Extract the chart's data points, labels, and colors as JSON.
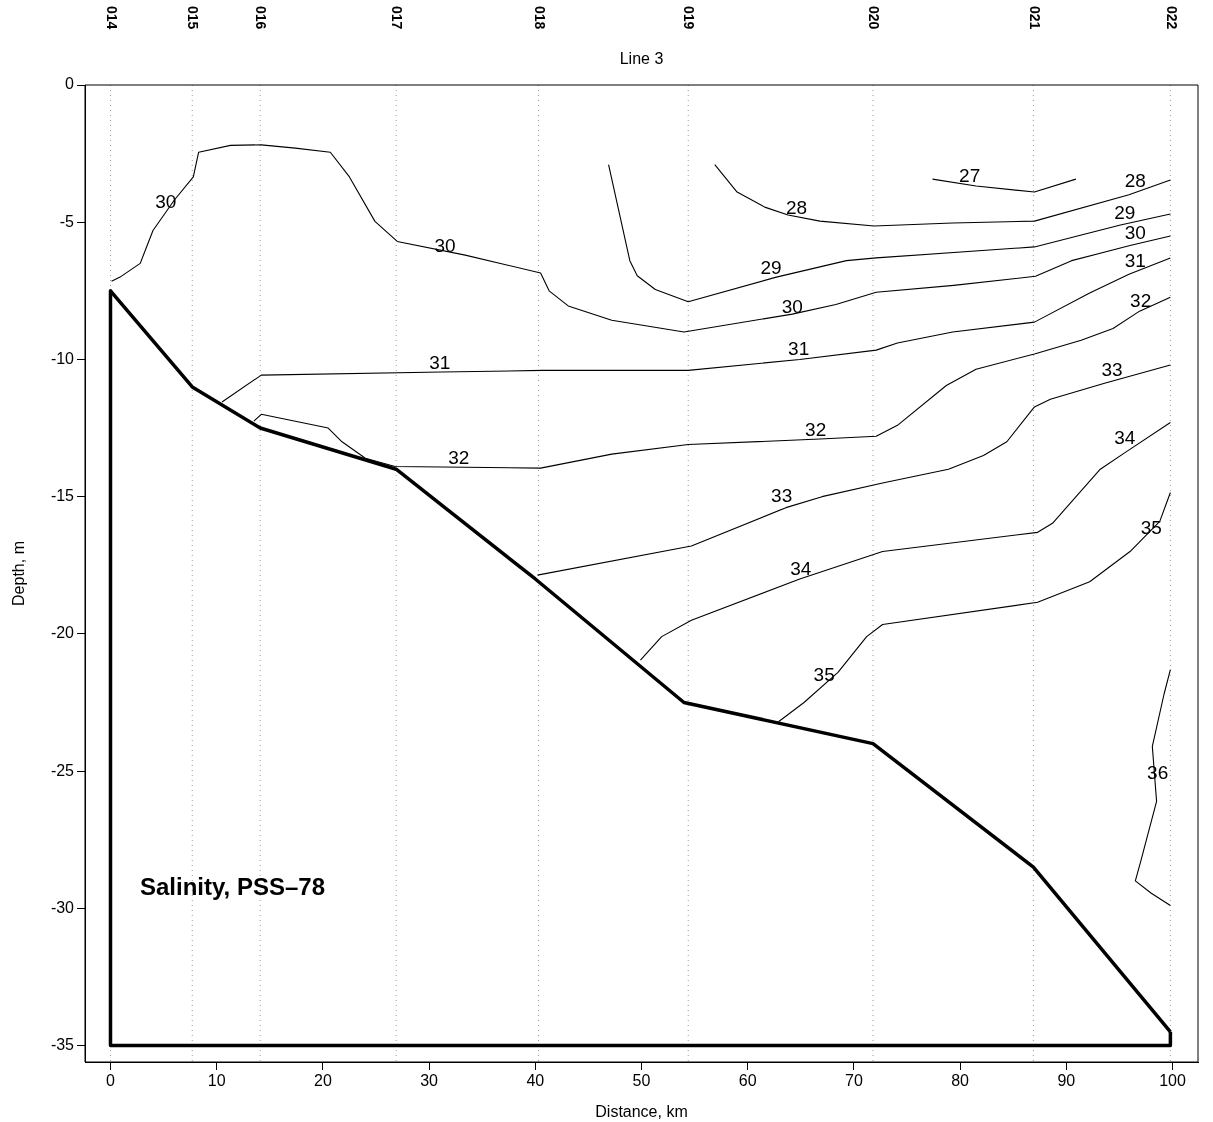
{
  "chart_data": {
    "type": "line",
    "title": "Salinity, PSS–78",
    "subtitle": "Line 3",
    "xlabel": "Distance, km",
    "ylabel": "Depth, m",
    "xlim": [
      -2.4,
      102.4
    ],
    "ylim": [
      -35.6,
      0
    ],
    "xticks": [
      0,
      10,
      20,
      30,
      40,
      50,
      60,
      70,
      80,
      90,
      100
    ],
    "yticks": [
      0,
      -5,
      -10,
      -15,
      -20,
      -25,
      -30,
      -35
    ],
    "marker": "none",
    "grid": false,
    "legend": false,
    "ref_lines": [
      {
        "axis": "x",
        "value": 0,
        "color": "#999999",
        "line_style": "dotted"
      },
      {
        "axis": "x",
        "value": 7.7,
        "color": "#999999",
        "line_style": "dotted"
      },
      {
        "axis": "x",
        "value": 14.1,
        "color": "#999999",
        "line_style": "dotted"
      },
      {
        "axis": "x",
        "value": 26.9,
        "color": "#999999",
        "line_style": "dotted"
      },
      {
        "axis": "x",
        "value": 40.3,
        "color": "#999999",
        "line_style": "dotted"
      },
      {
        "axis": "x",
        "value": 54.4,
        "color": "#999999",
        "line_style": "dotted"
      },
      {
        "axis": "x",
        "value": 71.8,
        "color": "#999999",
        "line_style": "dotted"
      },
      {
        "axis": "x",
        "value": 86.9,
        "color": "#999999",
        "line_style": "dotted"
      },
      {
        "axis": "x",
        "value": 99.8,
        "color": "#999999",
        "line_style": "dotted"
      }
    ],
    "series": [
      {
        "color": "#000000",
        "x": [
          0.1,
          0.9,
          2.8,
          4.0,
          6.0,
          7.8,
          8.3,
          11.3,
          14.2,
          17.4,
          20.7,
          22.5,
          24.9,
          27.0,
          33.4,
          40.5,
          41.3,
          43.1,
          47.2,
          54.0,
          64.2,
          68.3,
          72.1,
          79.4,
          87.1,
          90.5,
          96.0,
          99.8
        ],
        "values": [
          -7.15,
          -7.0,
          -6.5,
          -5.3,
          -4.2,
          -3.35,
          -2.45,
          -2.2,
          -2.18,
          -2.3,
          -2.45,
          -3.35,
          -4.97,
          -5.7,
          -6.2,
          -6.85,
          -7.5,
          -8.05,
          -8.57,
          -9.0,
          -8.35,
          -8.0,
          -7.55,
          -7.3,
          -6.97,
          -6.4,
          -5.85,
          -5.5
        ]
      },
      {
        "color": "#000000",
        "x": [
          46.9,
          48.9,
          49.6,
          51.3,
          54.4,
          62.7,
          69.3,
          72.1,
          87.0,
          95.1,
          99.8
        ],
        "values": [
          -2.9,
          -6.4,
          -6.95,
          -7.45,
          -7.9,
          -7.0,
          -6.4,
          -6.3,
          -5.9,
          -5.1,
          -4.7
        ]
      },
      {
        "color": "#000000",
        "x": [
          56.9,
          59.0,
          61.6,
          63.8,
          66.8,
          71.9,
          79.3,
          87.0,
          95.9,
          99.8
        ],
        "values": [
          -2.9,
          -3.9,
          -4.45,
          -4.74,
          -4.96,
          -5.14,
          -5.03,
          -4.96,
          -4.0,
          -3.46
        ]
      },
      {
        "color": "#000000",
        "x": [
          77.4,
          81.5,
          87.0,
          90.9
        ],
        "values": [
          -3.43,
          -3.68,
          -3.9,
          -3.43
        ]
      },
      {
        "color": "#000000",
        "x": [
          10.5,
          14.2,
          31.2,
          40.7,
          54.4,
          64.9,
          72.1,
          74.1,
          79.3,
          87.0,
          92.2,
          95.9,
          99.8
        ],
        "values": [
          -11.55,
          -10.57,
          -10.46,
          -10.4,
          -10.4,
          -10.0,
          -9.66,
          -9.4,
          -9.0,
          -8.64,
          -7.58,
          -6.9,
          -6.3
        ]
      },
      {
        "color": "#000000",
        "x": [
          13.5,
          14.2,
          20.5,
          21.8,
          24.0,
          26.8,
          33.4,
          40.5,
          47.2,
          54.4,
          66.8,
          72.1,
          74.1,
          78.7,
          81.5,
          87.0,
          91.4,
          94.4,
          96.9,
          99.8
        ],
        "values": [
          -12.25,
          -12.0,
          -12.5,
          -13.0,
          -13.6,
          -13.9,
          -13.93,
          -13.96,
          -13.45,
          -13.1,
          -12.9,
          -12.8,
          -12.4,
          -10.95,
          -10.36,
          -9.8,
          -9.3,
          -8.87,
          -8.24,
          -7.73
        ]
      },
      {
        "color": "#000000",
        "x": [
          40.2,
          54.7,
          63.6,
          67.0,
          72.7,
          78.9,
          82.2,
          84.4,
          87.0,
          88.5,
          93.6,
          99.8
        ],
        "values": [
          -17.86,
          -16.8,
          -15.4,
          -15.0,
          -14.5,
          -14.0,
          -13.5,
          -13.0,
          -11.73,
          -11.45,
          -10.87,
          -10.2
        ]
      },
      {
        "color": "#000000",
        "x": [
          49.9,
          51.9,
          54.7,
          64.9,
          72.7,
          87.3,
          88.7,
          93.2,
          95.7,
          99.8
        ],
        "values": [
          -20.96,
          -20.1,
          -19.5,
          -18.0,
          -17.0,
          -16.3,
          -15.97,
          -14.0,
          -13.35,
          -12.3
        ]
      },
      {
        "color": "#000000",
        "x": [
          62.9,
          65.3,
          68.5,
          71.2,
          72.7,
          87.3,
          92.2,
          96.0,
          98.8,
          99.8
        ],
        "values": [
          -23.2,
          -22.5,
          -21.4,
          -20.1,
          -19.66,
          -18.85,
          -18.1,
          -17.0,
          -15.9,
          -14.85
        ]
      },
      {
        "color": "#000000",
        "x": [
          99.8,
          99.2,
          98.1,
          98.5,
          97.0,
          96.5,
          98.0,
          99.8
        ],
        "values": [
          -21.3,
          -22.2,
          -24.1,
          -26.1,
          -28.3,
          -29.0,
          -29.45,
          -29.9
        ]
      },
      {
        "color": "#000000",
        "x": [
          0,
          7.7,
          14.1,
          26.9,
          40.0,
          54.0,
          71.8,
          86.9,
          99.8
        ],
        "values": [
          -7.5,
          -11,
          -12.5,
          -14,
          -18,
          -22.5,
          -24,
          -28.5,
          -34.5
        ]
      },
      {
        "color": "#000000",
        "x": [
          0,
          0,
          99.8,
          99.8
        ],
        "values": [
          -7.5,
          -35,
          -35,
          -34.5
        ]
      }
    ],
    "annotations": [
      "014",
      "015",
      "016",
      "017",
      "018",
      "019",
      "020",
      "021",
      "022",
      {
        "text": "30",
        "x": 5.2,
        "y": -4.6
      },
      {
        "text": "30",
        "x": 31.5,
        "y": -6.2
      },
      {
        "text": "30",
        "x": 64.2,
        "y": -8.4
      },
      {
        "text": "30",
        "x": 96.5,
        "y": -5.7
      },
      {
        "text": "28",
        "x": 64.6,
        "y": -4.8
      },
      {
        "text": "28",
        "x": 96.5,
        "y": -3.8
      },
      {
        "text": "27",
        "x": 80.9,
        "y": -3.65
      },
      {
        "text": "29",
        "x": 62.2,
        "y": -7.0
      },
      {
        "text": "29",
        "x": 95.5,
        "y": -5.0
      },
      {
        "text": "31",
        "x": 31.0,
        "y": -10.45
      },
      {
        "text": "31",
        "x": 64.8,
        "y": -9.95
      },
      {
        "text": "31",
        "x": 96.5,
        "y": -6.75
      },
      {
        "text": "32",
        "x": 32.8,
        "y": -13.9
      },
      {
        "text": "32",
        "x": 66.4,
        "y": -12.9
      },
      {
        "text": "32",
        "x": 97.0,
        "y": -8.2
      },
      {
        "text": "33",
        "x": 63.2,
        "y": -15.3
      },
      {
        "text": "33",
        "x": 94.3,
        "y": -10.7
      },
      {
        "text": "34",
        "x": 65.0,
        "y": -17.95
      },
      {
        "text": "34",
        "x": 95.5,
        "y": -13.2
      },
      {
        "text": "35",
        "x": 67.2,
        "y": -21.8
      },
      {
        "text": "35",
        "x": 98.0,
        "y": -16.45
      },
      {
        "text": "36",
        "x": 98.6,
        "y": -25.4
      }
    ]
  }
}
